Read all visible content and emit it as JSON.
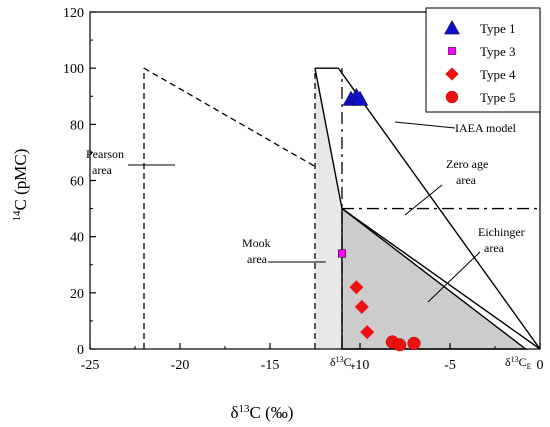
{
  "chart_data": {
    "type": "scatter",
    "xlabel": "δ13C (‰)",
    "ylabel": "14C (pMC)",
    "xlim": [
      -25,
      0
    ],
    "ylim": [
      0,
      120
    ],
    "xticks": [
      -25,
      -20,
      -15,
      -10,
      -5,
      0
    ],
    "yticks": [
      0,
      20,
      40,
      60,
      80,
      100,
      120
    ],
    "xtick_labels": [
      "-25",
      "-20",
      "-15",
      "-10",
      "-5",
      "0"
    ],
    "ytick_labels": [
      "0",
      "20",
      "40",
      "60",
      "80",
      "100",
      "120"
    ],
    "legend_position": "top-right",
    "series": [
      {
        "name": "Type 1",
        "marker": "triangle",
        "color": "#1010c8",
        "points": [
          [
            -10.5,
            89
          ],
          [
            -10.2,
            90
          ],
          [
            -10.0,
            89
          ]
        ]
      },
      {
        "name": "Type 3",
        "marker": "square",
        "color": "#ff00ff",
        "points": [
          [
            -11.0,
            34
          ]
        ]
      },
      {
        "name": "Type 4",
        "marker": "diamond",
        "color": "#ee1111",
        "points": [
          [
            -10.2,
            22
          ],
          [
            -9.9,
            15
          ],
          [
            -9.6,
            6
          ],
          [
            -8.2,
            2.5
          ]
        ]
      },
      {
        "name": "Type 5",
        "marker": "circle",
        "color": "#ee1111",
        "points": [
          [
            -8.2,
            2.5
          ],
          [
            -7.8,
            1.5
          ],
          [
            -7.0,
            2
          ]
        ]
      }
    ],
    "models": {
      "pearson": {
        "label": "Pearson area",
        "line1": [
          [
            -22,
            0
          ],
          [
            -22,
            100
          ]
        ],
        "line2": [
          [
            -22,
            100
          ],
          [
            -12.5,
            65
          ]
        ]
      },
      "mook": {
        "label": "Mook area",
        "polygon": [
          [
            -12.5,
            0
          ],
          [
            -12.5,
            100
          ],
          [
            -11,
            50
          ],
          [
            -11,
            0
          ]
        ]
      },
      "eichinger": {
        "label": "Eichinger area",
        "polygon": [
          [
            -11,
            50
          ],
          [
            -11,
            0
          ],
          [
            -0.8,
            0
          ]
        ]
      },
      "iaea": {
        "label": "IAEA model",
        "outline": [
          [
            -12.5,
            100
          ],
          [
            -11.2,
            100
          ],
          [
            0,
            0
          ],
          [
            -11,
            50
          ],
          [
            -12.5,
            100
          ]
        ]
      },
      "zero_age": {
        "label": "Zero age area",
        "hline_y": 50,
        "vline_x": -11,
        "vline_top": 100
      },
      "ci_label": "δ13Ci",
      "ce_label": "δ13CE"
    }
  }
}
